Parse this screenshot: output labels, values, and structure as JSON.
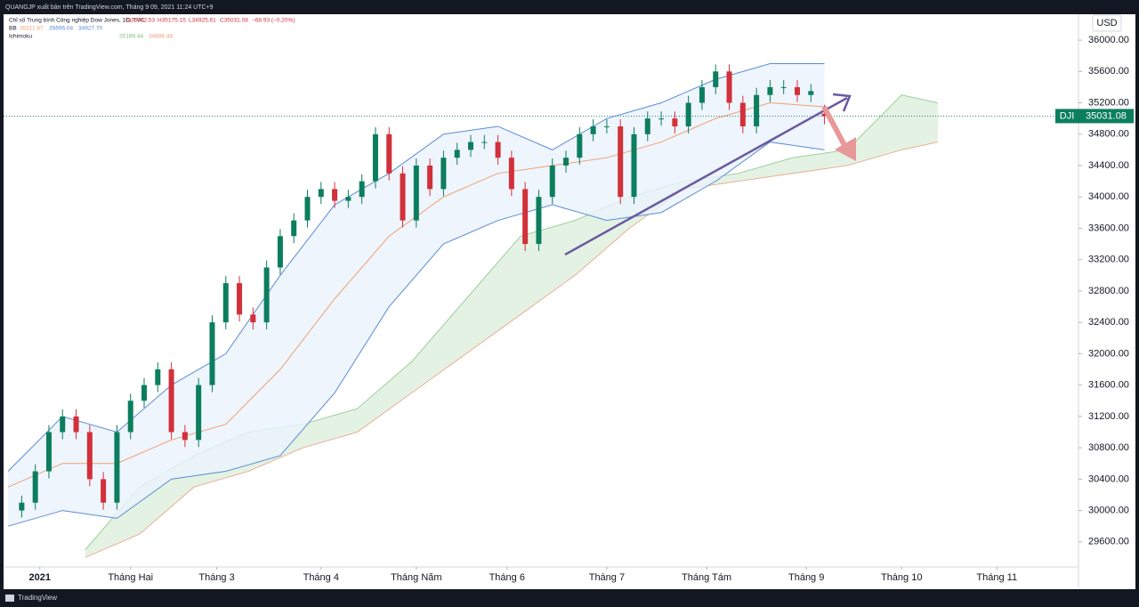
{
  "header": {
    "publisher": "QUANGJP xuất bản trên TradingView.com, Tháng 9 09, 2021 11:24 UTC+9",
    "instrument": "Chỉ số Trung bình Công nghiệp Dow Jones, 1D, TVC",
    "ohlc": [
      "O35062.53",
      "H35175.15",
      "L34925.61",
      "C35031.08",
      "−68.93 (−0.20%)"
    ],
    "bb_label": "BB",
    "bb_values": [
      "35311.87",
      "35696.04",
      "34927.70"
    ],
    "ichimoku_label": "Ichimoku",
    "ichimoku_values": [
      "35189.44",
      "34686.48"
    ]
  },
  "chart_data": {
    "type": "candlestick",
    "symbol": "DJI",
    "currency": "USD",
    "last_price": 35031.08,
    "up_color": "#0c7e5e",
    "down_color": "#d2303a",
    "x": [
      3,
      6,
      9,
      12,
      15,
      18,
      21,
      24,
      27,
      30,
      33,
      36,
      39,
      42,
      45,
      48,
      51,
      54,
      57,
      60,
      63,
      66,
      69,
      72,
      75,
      78,
      81,
      84,
      87,
      90,
      93,
      96,
      99,
      102,
      105,
      108,
      111,
      114,
      117,
      120,
      123,
      126,
      129,
      132,
      135,
      138,
      141,
      144,
      147,
      150,
      153,
      156,
      159,
      162,
      165,
      168,
      171,
      174,
      177,
      180
    ],
    "open": [
      30000,
      30100,
      30500,
      31000,
      31200,
      31000,
      30400,
      30100,
      31000,
      31400,
      31600,
      31800,
      31000,
      30900,
      31600,
      32400,
      32900,
      32500,
      32400,
      33100,
      33500,
      33700,
      34000,
      34100,
      33950,
      34000,
      34200,
      34800,
      34300,
      33700,
      34400,
      34100,
      34500,
      34600,
      34700,
      34700,
      34500,
      34100,
      33400,
      34000,
      34400,
      34500,
      34800,
      34900,
      34900,
      34000,
      34800,
      35000,
      35000,
      34900,
      35200,
      35400,
      35600,
      35200,
      34900,
      35300,
      35400,
      35400,
      35300,
      35062.53
    ],
    "high": [
      30190,
      30590,
      31090,
      31290,
      31290,
      31090,
      30490,
      31090,
      31490,
      31690,
      31890,
      31890,
      31090,
      31690,
      32490,
      32990,
      32990,
      32590,
      33190,
      33590,
      33790,
      34090,
      34190,
      34190,
      34090,
      34290,
      34890,
      34890,
      34390,
      34490,
      34490,
      34590,
      34690,
      34790,
      34790,
      34790,
      34590,
      34190,
      34090,
      34490,
      34590,
      34890,
      34990,
      34990,
      34990,
      34890,
      35090,
      35090,
      35090,
      35290,
      35490,
      35690,
      35690,
      35290,
      35390,
      35490,
      35490,
      35490,
      35440,
      35175.15
    ],
    "low": [
      29910,
      30010,
      30410,
      30910,
      30910,
      30310,
      30010,
      30010,
      30910,
      31310,
      31510,
      30910,
      30810,
      30810,
      31510,
      32310,
      32410,
      32310,
      32310,
      33010,
      33410,
      33610,
      33910,
      33860,
      33860,
      33910,
      34110,
      34210,
      33610,
      33610,
      34010,
      34010,
      34410,
      34510,
      34610,
      34410,
      34010,
      33310,
      33310,
      33910,
      34310,
      34410,
      34710,
      34810,
      33910,
      33910,
      34710,
      34910,
      34810,
      34810,
      35110,
      35310,
      35110,
      34810,
      34810,
      35210,
      35310,
      35210,
      35210,
      34925.61
    ],
    "close": [
      30100,
      30500,
      31000,
      31200,
      31000,
      30400,
      30100,
      31000,
      31400,
      31600,
      31800,
      31000,
      30900,
      31600,
      32400,
      32900,
      32500,
      32400,
      33100,
      33500,
      33700,
      34000,
      34100,
      33950,
      34000,
      34200,
      34800,
      34300,
      33700,
      34400,
      34100,
      34500,
      34600,
      34700,
      34700,
      34500,
      34100,
      33400,
      34000,
      34400,
      34500,
      34800,
      34900,
      34900,
      34000,
      34800,
      35000,
      35000,
      34900,
      35200,
      35400,
      35600,
      35200,
      34900,
      35300,
      35400,
      35400,
      35300,
      35350,
      35031.08
    ],
    "xlim": [
      -1,
      236
    ],
    "xticks": [
      {
        "value": 7,
        "label": "2021"
      },
      {
        "value": 27,
        "label": "Tháng Hai"
      },
      {
        "value": 46,
        "label": "Tháng 3"
      },
      {
        "value": 69,
        "label": "Tháng 4"
      },
      {
        "value": 90,
        "label": "Tháng Năm"
      },
      {
        "value": 110,
        "label": "Tháng 6"
      },
      {
        "value": 132,
        "label": "Tháng 7"
      },
      {
        "value": 154,
        "label": "Tháng Tám"
      },
      {
        "value": 176,
        "label": "Tháng 9"
      },
      {
        "value": 197,
        "label": "Tháng 10"
      },
      {
        "value": 218,
        "label": "Tháng 11"
      }
    ],
    "ylim": [
      29280,
      36330
    ],
    "yticks": [
      {
        "value": 29600,
        "label": "29600.00"
      },
      {
        "value": 30000,
        "label": "30000.00"
      },
      {
        "value": 30400,
        "label": "30400.00"
      },
      {
        "value": 30800,
        "label": "30800.00"
      },
      {
        "value": 31200,
        "label": "31200.00"
      },
      {
        "value": 31600,
        "label": "31600.00"
      },
      {
        "value": 32000,
        "label": "32000.00"
      },
      {
        "value": 32400,
        "label": "32400.00"
      },
      {
        "value": 32800,
        "label": "32800.00"
      },
      {
        "value": 33200,
        "label": "33200.00"
      },
      {
        "value": 33600,
        "label": "33600.00"
      },
      {
        "value": 34000,
        "label": "34000.00"
      },
      {
        "value": 34400,
        "label": "34400.00"
      },
      {
        "value": 34800,
        "label": "34800.00"
      },
      {
        "value": 35200,
        "label": "35200.00"
      },
      {
        "value": 35600,
        "label": "35600.00"
      },
      {
        "value": 36000,
        "label": "36000.00"
      }
    ],
    "bollinger": {
      "color": "#5b8bd6",
      "basis_color": "#f0a070",
      "fill": "#eaf3fc",
      "x": [
        0,
        12,
        24,
        36,
        48,
        60,
        72,
        84,
        96,
        108,
        120,
        132,
        144,
        156,
        168,
        180
      ],
      "upper": [
        30500,
        31200,
        31000,
        31600,
        32000,
        33000,
        33900,
        34300,
        34800,
        34900,
        34600,
        35000,
        35200,
        35500,
        35700,
        35700
      ],
      "middle": [
        30300,
        30600,
        30600,
        30900,
        31100,
        31800,
        32700,
        33500,
        34000,
        34300,
        34400,
        34500,
        34700,
        35000,
        35200,
        35150
      ],
      "lower": [
        29800,
        30000,
        29900,
        30400,
        30500,
        30700,
        31500,
        32600,
        33400,
        33700,
        33900,
        33700,
        33800,
        34200,
        34700,
        34600
      ]
    },
    "ichimoku": {
      "color": "#9ccf9c",
      "fill": "#e4f2e4",
      "span_b_color": "#e8a080",
      "x": [
        17,
        29,
        41,
        53,
        65,
        77,
        89,
        101,
        113,
        125,
        137,
        149,
        161,
        173,
        185,
        197,
        205
      ],
      "span_a": [
        29500,
        30300,
        30700,
        31000,
        31100,
        31300,
        31900,
        32700,
        33500,
        33700,
        34000,
        34200,
        34300,
        34500,
        34600,
        35300,
        35200
      ],
      "span_b": [
        29400,
        29700,
        30300,
        30500,
        30800,
        31000,
        31500,
        32000,
        32500,
        33000,
        33600,
        34100,
        34200,
        34300,
        34400,
        34600,
        34700
      ]
    }
  },
  "footer": {
    "brand": "TradingView"
  }
}
